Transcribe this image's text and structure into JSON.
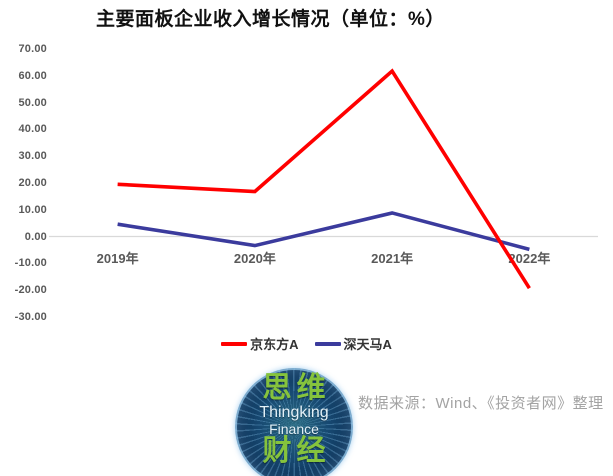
{
  "chart_data": {
    "type": "line",
    "title": "主要面板企业收入增长情况（单位：%）",
    "xlabel": "",
    "ylabel": "",
    "categories": [
      "2019年",
      "2020年",
      "2021年",
      "2022年"
    ],
    "series": [
      {
        "name": "京东方A",
        "color": "#FF0000",
        "values": [
          19.5,
          16.8,
          61.8,
          -19.3
        ]
      },
      {
        "name": "深天马A",
        "color": "#3B3B9D",
        "values": [
          4.6,
          -3.4,
          8.8,
          -4.8
        ]
      }
    ],
    "yticks": [
      {
        "value": 70,
        "label": "70.00"
      },
      {
        "value": 60,
        "label": "60.00"
      },
      {
        "value": 50,
        "label": "50.00"
      },
      {
        "value": 40,
        "label": "40.00"
      },
      {
        "value": 30,
        "label": "30.00"
      },
      {
        "value": 20,
        "label": "20.00"
      },
      {
        "value": 10,
        "label": "10.00"
      },
      {
        "value": 0,
        "label": "0.00"
      },
      {
        "value": -10,
        "label": "-10.00"
      },
      {
        "value": -20,
        "label": "-20.00"
      },
      {
        "value": -30,
        "label": "-30.00"
      }
    ],
    "ylim": [
      -30,
      70
    ],
    "grid": "zero-line-only",
    "legend_position": "bottom"
  },
  "source_text": "数据来源：Wind、《投资者网》整理",
  "logo": {
    "top_text": "思维",
    "en_line1": "Thingking",
    "en_line2": "Finance",
    "bottom_text": "财经"
  },
  "colors": {
    "axis_label": "#595959",
    "gridline": "#D9D9D9",
    "source_text": "#A3A3A3",
    "logo_green": "#85C33D",
    "logo_bg": "#123C66",
    "series_1": "#FF0000",
    "series_2": "#3B3B9D"
  }
}
